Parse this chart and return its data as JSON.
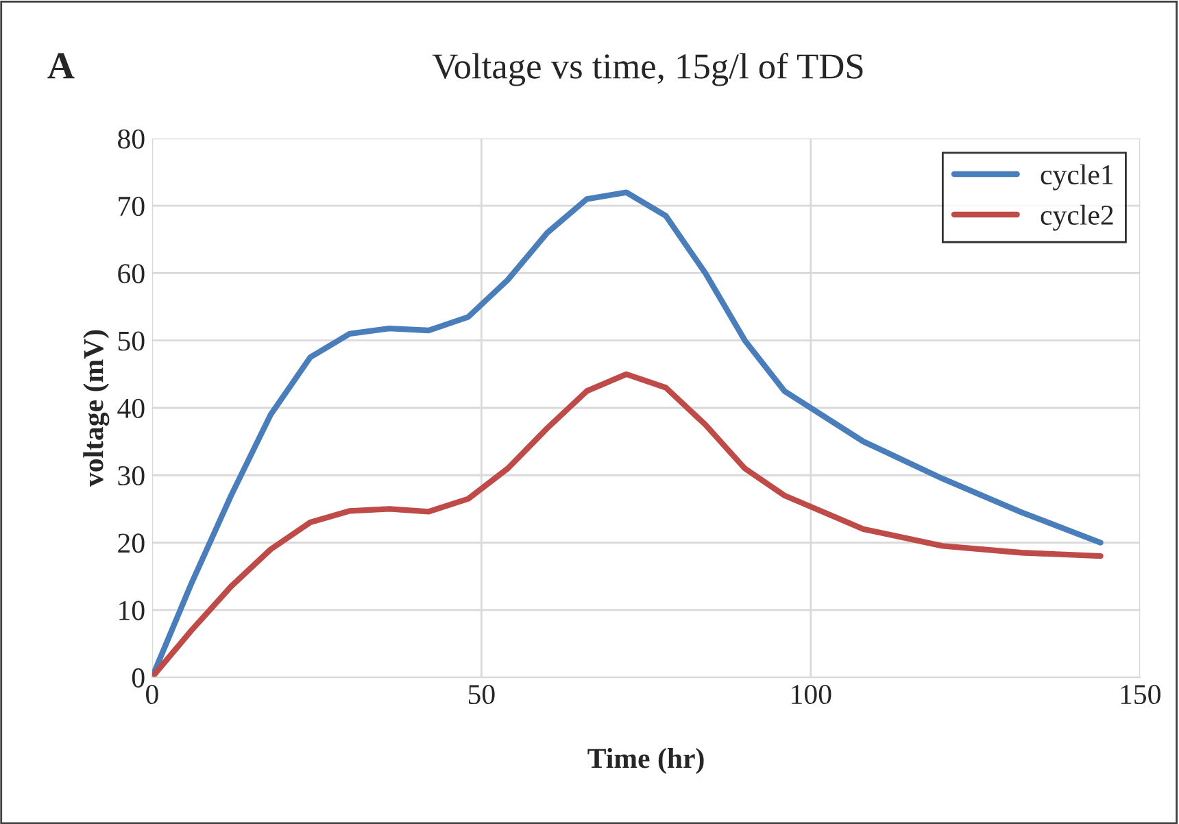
{
  "chart_data": {
    "type": "line",
    "title": "Voltage vs time, 15g/l of TDS",
    "xlabel": "Time (hr)",
    "ylabel": "voltage (mV)",
    "annotations": [
      "A"
    ],
    "xlim": [
      0,
      150
    ],
    "xticks": [
      0,
      50,
      100,
      150
    ],
    "ylim": [
      0,
      80
    ],
    "yticks": [
      0,
      10,
      20,
      30,
      40,
      50,
      60,
      70,
      80
    ],
    "grid": true,
    "legend": "top right",
    "marker": "none",
    "line_style": "solid",
    "series": [
      {
        "name": "cycle1",
        "color": "#4a7ebb",
        "x": [
          0,
          6,
          12,
          18,
          24,
          30,
          36,
          42,
          48,
          54,
          60,
          66,
          72,
          78,
          84,
          90,
          96,
          108,
          120,
          132,
          144
        ],
        "values": [
          0,
          14,
          27,
          39,
          47.5,
          51,
          51.8,
          51.5,
          53.5,
          59,
          66,
          71,
          72,
          68.5,
          60,
          50,
          42.5,
          35,
          29.5,
          24.5,
          20
        ]
      },
      {
        "name": "cycle2",
        "color": "#be4b48",
        "x": [
          0,
          6,
          12,
          18,
          24,
          30,
          36,
          42,
          48,
          54,
          60,
          66,
          72,
          78,
          84,
          90,
          96,
          108,
          120,
          132,
          144
        ],
        "values": [
          0,
          7,
          13.5,
          19,
          23,
          24.7,
          25,
          24.6,
          26.5,
          31,
          37,
          42.5,
          45,
          43,
          37.5,
          31,
          27,
          22,
          19.5,
          18.5,
          18
        ]
      }
    ]
  }
}
